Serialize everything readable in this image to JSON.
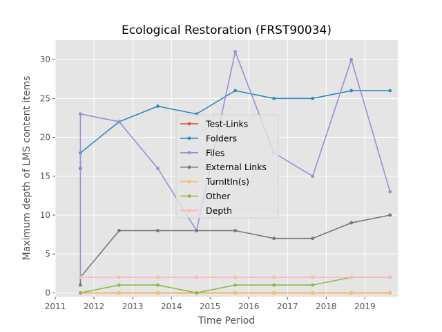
{
  "chart_data": {
    "type": "line",
    "title": "Ecological Restoration (FRST90034)",
    "xlabel": "Time Period",
    "ylabel": "Maximum depth of LMS content items",
    "xlim": [
      2011,
      2019.85
    ],
    "ylim": [
      -0.5,
      32.5
    ],
    "xticks": [
      2011,
      2012,
      2013,
      2014,
      2015,
      2016,
      2017,
      2018,
      2019
    ],
    "yticks": [
      0,
      5,
      10,
      15,
      20,
      25,
      30
    ],
    "grid": true,
    "legend_position": "center",
    "colors": {
      "plot_background": "#e5e5e5",
      "grid": "#ffffff",
      "ticks": "#555555"
    },
    "series": [
      {
        "name": "Test-Links",
        "color": "#e24a33",
        "x": [
          2011.65,
          2011.65,
          2012.65,
          2013.65,
          2014.65,
          2015.65,
          2016.65,
          2017.65,
          2018.65,
          2019.65
        ],
        "y": [
          0,
          0,
          0,
          0,
          0,
          0,
          0,
          0,
          0,
          0
        ]
      },
      {
        "name": "Folders",
        "color": "#348abd",
        "x": [
          2011.65,
          2011.65,
          2012.65,
          2013.65,
          2014.65,
          2015.65,
          2016.65,
          2017.65,
          2018.65,
          2019.65
        ],
        "y": [
          16,
          18,
          22,
          24,
          23,
          26,
          25,
          25,
          26,
          26
        ]
      },
      {
        "name": "Files",
        "color": "#988ed5",
        "x": [
          2011.65,
          2011.65,
          2012.65,
          2013.65,
          2014.65,
          2015.65,
          2016.65,
          2017.65,
          2018.65,
          2019.65
        ],
        "y": [
          2,
          23,
          22,
          16,
          8,
          31,
          18,
          15,
          30,
          13
        ]
      },
      {
        "name": "External Links",
        "color": "#777777",
        "x": [
          2011.65,
          2011.65,
          2012.65,
          2013.65,
          2014.65,
          2015.65,
          2016.65,
          2017.65,
          2018.65,
          2019.65
        ],
        "y": [
          1,
          2,
          8,
          8,
          8,
          8,
          7,
          7,
          9,
          10
        ]
      },
      {
        "name": "TurnItIn(s)",
        "color": "#fbc15e",
        "x": [
          2011.65,
          2011.65,
          2012.65,
          2013.65,
          2014.65,
          2015.65,
          2016.65,
          2017.65,
          2018.65,
          2019.65
        ],
        "y": [
          0,
          0,
          0,
          0,
          0,
          0,
          0,
          0,
          0,
          0
        ]
      },
      {
        "name": "Other",
        "color": "#8eba42",
        "x": [
          2011.65,
          2011.65,
          2012.65,
          2013.65,
          2014.65,
          2015.65,
          2016.65,
          2017.65,
          2018.65,
          2019.65
        ],
        "y": [
          0,
          0,
          1,
          1,
          0,
          1,
          1,
          1,
          2,
          2
        ]
      },
      {
        "name": "Depth",
        "color": "#ffb5b8",
        "x": [
          2011.65,
          2011.65,
          2012.65,
          2013.65,
          2014.65,
          2015.65,
          2016.65,
          2017.65,
          2018.65,
          2019.65
        ],
        "y": [
          2,
          2,
          2,
          2,
          2,
          2,
          2,
          2,
          2,
          2
        ]
      }
    ]
  }
}
